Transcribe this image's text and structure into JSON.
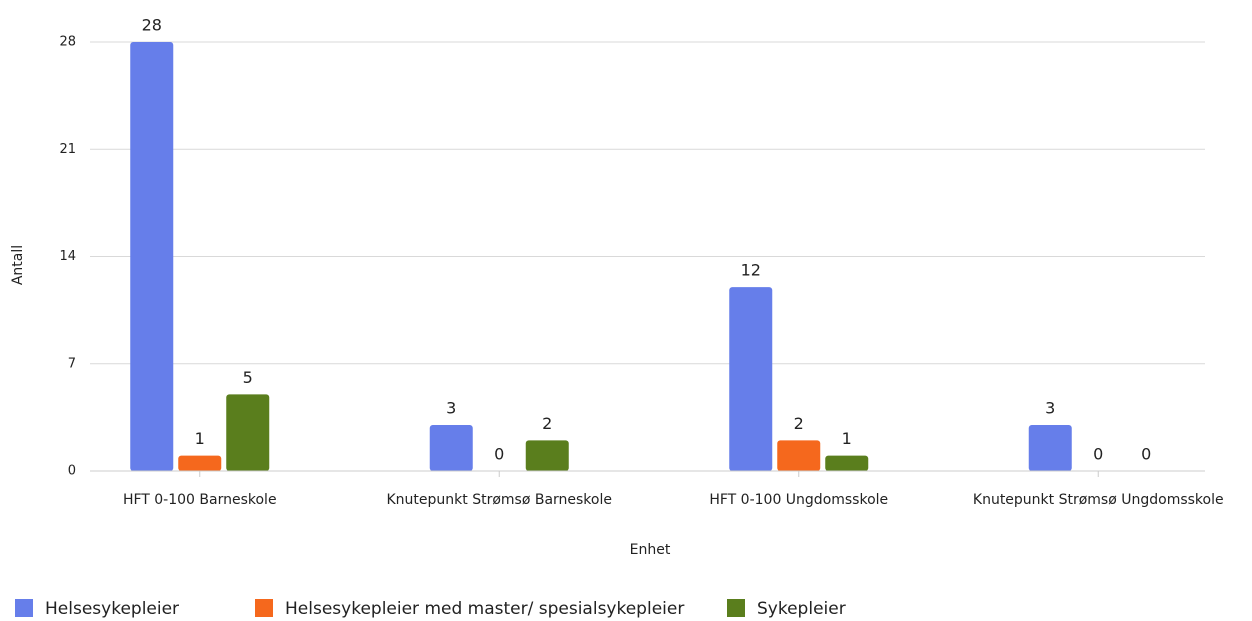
{
  "chart_data": {
    "type": "bar",
    "x_label": "Enhet",
    "y_label": "Antall",
    "categories": [
      "HFT 0-100 Barneskole",
      "Knutepunkt Strømsø Barneskole",
      "HFT 0-100 Ungdomsskole",
      "Knutepunkt Strømsø Ungdomsskole"
    ],
    "series": [
      {
        "name": "Helsesykepleier",
        "color": "#667eea",
        "values": [
          28,
          3,
          12,
          3
        ]
      },
      {
        "name": "Helsesykepleier med master/ spesialsykepleier",
        "color": "#f5681d",
        "values": [
          1,
          0,
          2,
          0
        ]
      },
      {
        "name": "Sykepleier",
        "color": "#5a7e1d",
        "values": [
          5,
          2,
          1,
          0
        ]
      }
    ],
    "ylim": [
      0,
      28
    ],
    "yticks": [
      0,
      7,
      14,
      21,
      28
    ],
    "grid": true,
    "legend": "bottom-left"
  }
}
